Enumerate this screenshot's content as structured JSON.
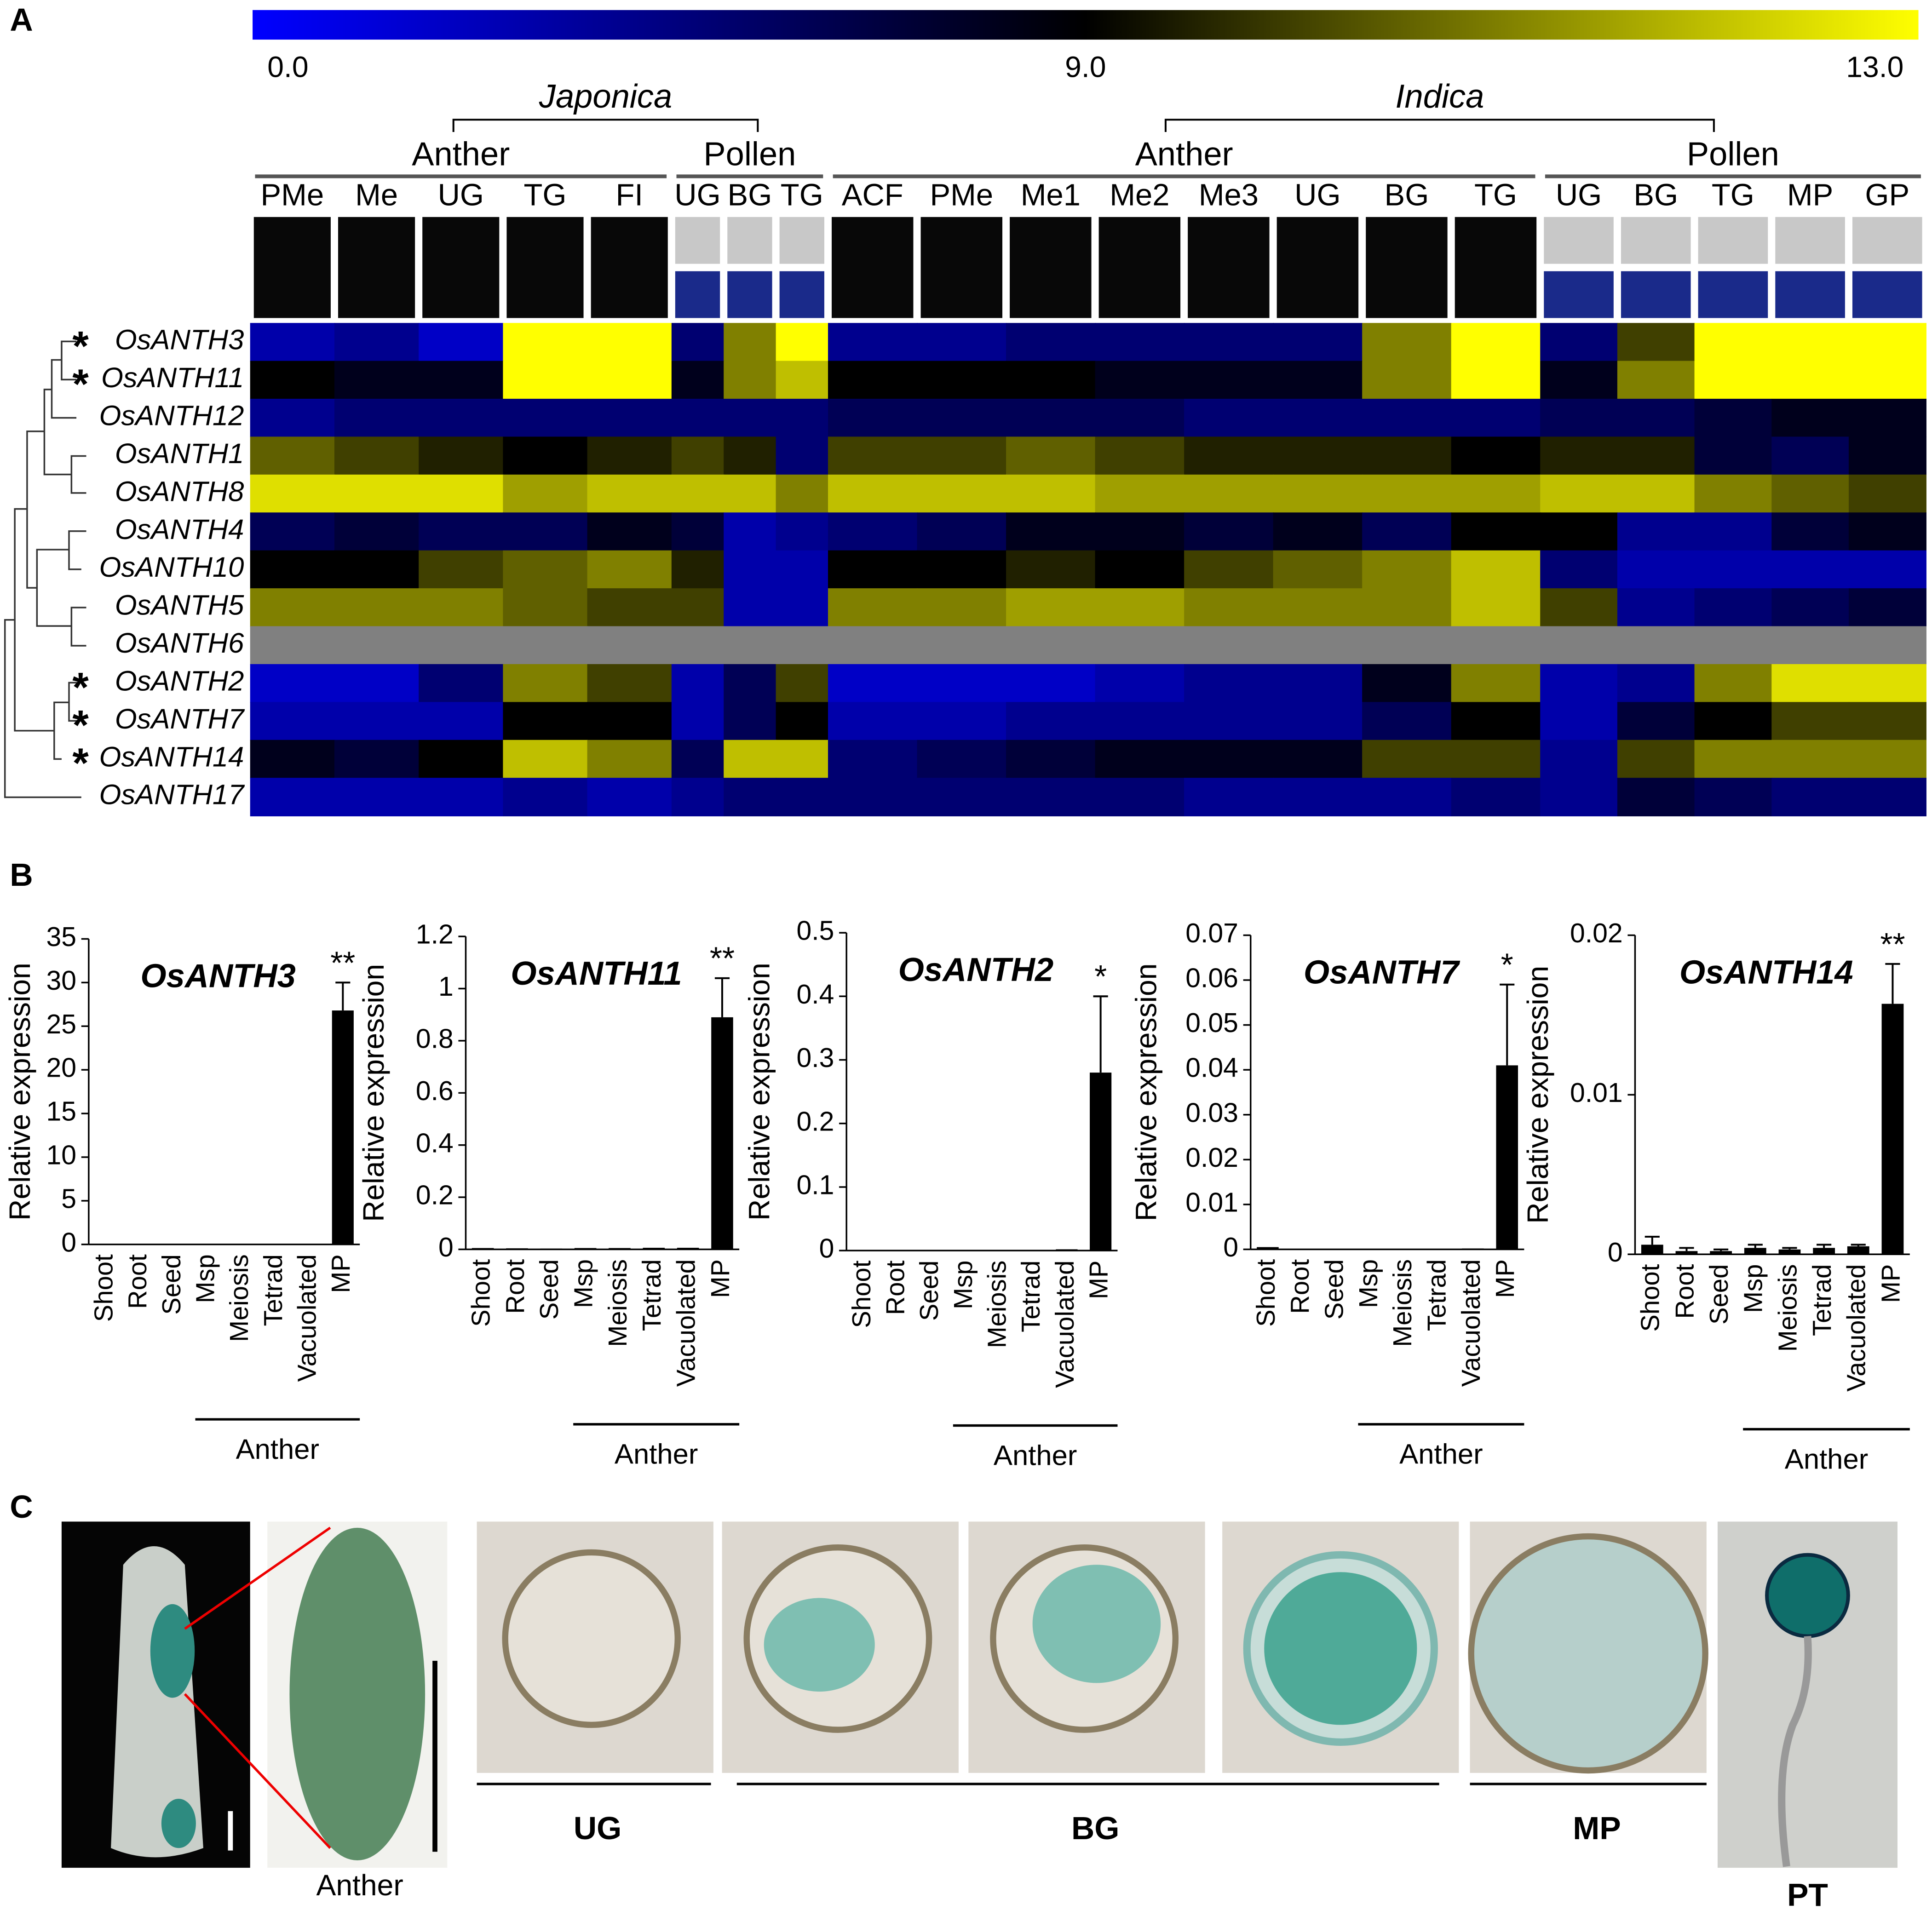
{
  "panel_labels": [
    "A",
    "B",
    "C"
  ],
  "chart_data": [
    {
      "type": "heatmap",
      "colorbar": {
        "ticks": [
          {
            "value": 0,
            "label": "0.0"
          },
          {
            "value": 9,
            "label": "9.0"
          },
          {
            "value": 13,
            "label": "13.0"
          }
        ],
        "colors": [
          "#0000ff",
          "#000000",
          "#ffff00"
        ]
      },
      "missing_color": "#808080",
      "marker": "*",
      "marker_color": "#ff0000",
      "species": [
        {
          "name": "Japonica",
          "tissues": [
            {
              "name": "Anther",
              "stages": [
                "PMe",
                "Me",
                "UG",
                "TG",
                "FI"
              ]
            },
            {
              "name": "Pollen",
              "stages": [
                "UG",
                "BG",
                "TG"
              ]
            }
          ]
        },
        {
          "name": "Indica",
          "tissues": [
            {
              "name": "Anther",
              "stages": [
                "ACF",
                "PMe",
                "Me1",
                "Me2",
                "Me3",
                "UG",
                "BG",
                "TG"
              ]
            },
            {
              "name": "Pollen",
              "stages": [
                "UG",
                "BG",
                "TG",
                "MP",
                "GP"
              ]
            }
          ]
        }
      ],
      "rows": [
        {
          "gene": "OsANTH3",
          "marked": true,
          "values": [
            3,
            4,
            2,
            13,
            13,
            5,
            11,
            13,
            4,
            4,
            5,
            5,
            5,
            5,
            11,
            13,
            5,
            10,
            13,
            13,
            13
          ]
        },
        {
          "gene": "OsANTH11",
          "marked": true,
          "values": [
            9,
            8,
            8,
            13,
            13,
            8,
            11,
            12,
            9,
            9,
            9,
            8,
            8,
            8,
            11,
            13,
            8,
            11,
            13,
            13,
            13
          ]
        },
        {
          "gene": "OsANTH12",
          "marked": false,
          "values": [
            4,
            5,
            5,
            5,
            5,
            5,
            5,
            5,
            6,
            6,
            6,
            6,
            5,
            5,
            5,
            5,
            6,
            6,
            7,
            8,
            8
          ]
        },
        {
          "gene": "OsANTH1",
          "marked": false,
          "values": [
            10.5,
            10,
            9.5,
            9,
            9.5,
            10,
            9.5,
            5,
            10,
            10,
            10.5,
            10,
            9.5,
            9.5,
            9.5,
            9,
            9.5,
            9.5,
            7,
            6,
            8
          ]
        },
        {
          "gene": "OsANTH8",
          "marked": false,
          "values": [
            12.5,
            12.5,
            12.5,
            11.5,
            12,
            12,
            12,
            11,
            12,
            12,
            12,
            11.5,
            11.5,
            11.5,
            11.5,
            11.5,
            12,
            12,
            11,
            10.5,
            10
          ]
        },
        {
          "gene": "OsANTH4",
          "marked": false,
          "values": [
            6,
            7,
            6,
            6,
            8,
            7,
            3,
            4,
            5,
            6,
            8,
            8,
            7,
            8,
            6,
            9,
            9,
            4,
            4,
            7,
            8
          ]
        },
        {
          "gene": "OsANTH10",
          "marked": false,
          "values": [
            9,
            9,
            10,
            10.5,
            11,
            9.5,
            3,
            3,
            9,
            9,
            9.5,
            9,
            10,
            10.5,
            11,
            12,
            5,
            3,
            3,
            3,
            3
          ]
        },
        {
          "gene": "OsANTH5",
          "marked": false,
          "values": [
            11,
            11,
            11,
            10.5,
            10,
            10,
            3,
            3,
            11,
            11,
            11.5,
            11.5,
            11,
            11,
            11,
            12,
            10,
            4,
            5,
            6,
            7
          ]
        },
        {
          "gene": "OsANTH6",
          "marked": false,
          "values": [
            null,
            null,
            null,
            null,
            null,
            null,
            null,
            null,
            null,
            null,
            null,
            null,
            null,
            null,
            null,
            null,
            null,
            null,
            null,
            null,
            null
          ]
        },
        {
          "gene": "OsANTH2",
          "marked": true,
          "values": [
            2,
            2,
            5,
            11,
            10,
            3,
            6,
            10,
            2,
            2,
            2,
            3,
            4,
            4,
            8,
            11,
            3,
            4,
            11,
            12.5,
            12.5
          ]
        },
        {
          "gene": "OsANTH7",
          "marked": true,
          "values": [
            3,
            3,
            3,
            9,
            9,
            3,
            6,
            9,
            3,
            3,
            4,
            4,
            4,
            4,
            6,
            9,
            3,
            7,
            9,
            10,
            10
          ]
        },
        {
          "gene": "OsANTH14",
          "marked": true,
          "values": [
            8,
            7,
            9,
            12,
            11,
            6,
            12,
            12,
            5,
            6,
            7,
            8,
            8,
            8,
            10,
            10,
            4,
            10,
            11,
            11,
            11
          ]
        },
        {
          "gene": "OsANTH17",
          "marked": false,
          "values": [
            3,
            3,
            3,
            4,
            3,
            4,
            5,
            5,
            5,
            5,
            5,
            5,
            4,
            4,
            4,
            5,
            4,
            7,
            6,
            5,
            5
          ]
        }
      ]
    },
    {
      "type": "bar",
      "title": "OsANTH3",
      "ylabel": "Relative expression",
      "color": "#000000",
      "categories": [
        "Shoot",
        "Root",
        "Seed",
        "Msp",
        "Meiosis",
        "Tetrad",
        "Vacuolated",
        "MP"
      ],
      "values": [
        0.05,
        0.05,
        0.02,
        0.02,
        0.02,
        0.02,
        0.02,
        26.8
      ],
      "errors": [
        null,
        null,
        null,
        null,
        null,
        null,
        null,
        3.2
      ],
      "value_annotations": [
        null,
        null,
        null,
        null,
        null,
        null,
        null,
        "**"
      ],
      "group": {
        "label": "Anther",
        "members": [
          "Msp",
          "Meiosis",
          "Tetrad",
          "Vacuolated",
          "MP"
        ]
      },
      "ylim": [
        0,
        35
      ],
      "yticks": [
        0,
        5,
        10,
        15,
        20,
        25,
        30,
        35
      ]
    },
    {
      "type": "bar",
      "title": "OsANTH11",
      "ylabel": "Relative expression",
      "color": "#000000",
      "categories": [
        "Shoot",
        "Root",
        "Seed",
        "Msp",
        "Meiosis",
        "Tetrad",
        "Vacuolated",
        "MP"
      ],
      "values": [
        0.005,
        0.004,
        0.003,
        0.005,
        0.005,
        0.006,
        0.006,
        0.89
      ],
      "errors": [
        null,
        null,
        null,
        null,
        null,
        null,
        null,
        0.15
      ],
      "value_annotations": [
        null,
        null,
        null,
        null,
        null,
        null,
        null,
        "**"
      ],
      "group": {
        "label": "Anther",
        "members": [
          "Msp",
          "Meiosis",
          "Tetrad",
          "Vacuolated",
          "MP"
        ]
      },
      "ylim": [
        0,
        1.2
      ],
      "yticks": [
        0,
        0.2,
        0.4,
        0.6,
        0.8,
        1,
        1.2
      ]
    },
    {
      "type": "bar",
      "title": "OsANTH2",
      "ylabel": "Relative expression",
      "color": "#000000",
      "categories": [
        "Shoot",
        "Root",
        "Seed",
        "Msp",
        "Meiosis",
        "Tetrad",
        "Vacuolated",
        "MP"
      ],
      "values": [
        0.001,
        0.0005,
        0.0005,
        0.001,
        0.001,
        0.001,
        0.002,
        0.28
      ],
      "errors": [
        null,
        null,
        null,
        null,
        null,
        null,
        null,
        0.12
      ],
      "value_annotations": [
        null,
        null,
        null,
        null,
        null,
        null,
        null,
        "*"
      ],
      "group": {
        "label": "Anther",
        "members": [
          "Msp",
          "Meiosis",
          "Tetrad",
          "Vacuolated",
          "MP"
        ]
      },
      "ylim": [
        0,
        0.5
      ],
      "yticks": [
        0,
        0.1,
        0.2,
        0.3,
        0.4,
        0.5
      ]
    },
    {
      "type": "bar",
      "title": "OsANTH7",
      "ylabel": "Relative expression",
      "color": "#000000",
      "categories": [
        "Shoot",
        "Root",
        "Seed",
        "Msp",
        "Meiosis",
        "Tetrad",
        "Vacuolated",
        "MP"
      ],
      "values": [
        0.0005,
        0.0001,
        0.0001,
        0.0001,
        0.0001,
        0.0001,
        0.0002,
        0.041
      ],
      "errors": [
        null,
        null,
        null,
        null,
        null,
        null,
        null,
        0.018
      ],
      "value_annotations": [
        null,
        null,
        null,
        null,
        null,
        null,
        null,
        "*"
      ],
      "group": {
        "label": "Anther",
        "members": [
          "Msp",
          "Meiosis",
          "Tetrad",
          "Vacuolated",
          "MP"
        ]
      },
      "ylim": [
        0,
        0.07
      ],
      "yticks": [
        0,
        0.01,
        0.02,
        0.03,
        0.04,
        0.05,
        0.06,
        0.07
      ]
    },
    {
      "type": "bar",
      "title": "OsANTH14",
      "ylabel": "Relative expression",
      "color": "#000000",
      "categories": [
        "Shoot",
        "Root",
        "Seed",
        "Msp",
        "Meiosis",
        "Tetrad",
        "Vacuolated",
        "MP"
      ],
      "values": [
        0.0006,
        0.0002,
        0.0002,
        0.0004,
        0.0003,
        0.0004,
        0.0005,
        0.0157
      ],
      "errors": [
        0.0005,
        0.0002,
        0.0001,
        0.0002,
        0.0001,
        0.0002,
        0.0001,
        0.0025
      ],
      "value_annotations": [
        null,
        null,
        null,
        null,
        null,
        null,
        null,
        "**"
      ],
      "group": {
        "label": "Anther",
        "members": [
          "Msp",
          "Meiosis",
          "Tetrad",
          "Vacuolated",
          "MP"
        ]
      },
      "ylim": [
        0,
        0.02
      ],
      "yticks": [
        0,
        0.01,
        0.02
      ]
    }
  ],
  "panel_c": {
    "anther_label": "Anther",
    "stage_labels": [
      "UG",
      "BG",
      "MP"
    ],
    "tube_label": "PT"
  }
}
